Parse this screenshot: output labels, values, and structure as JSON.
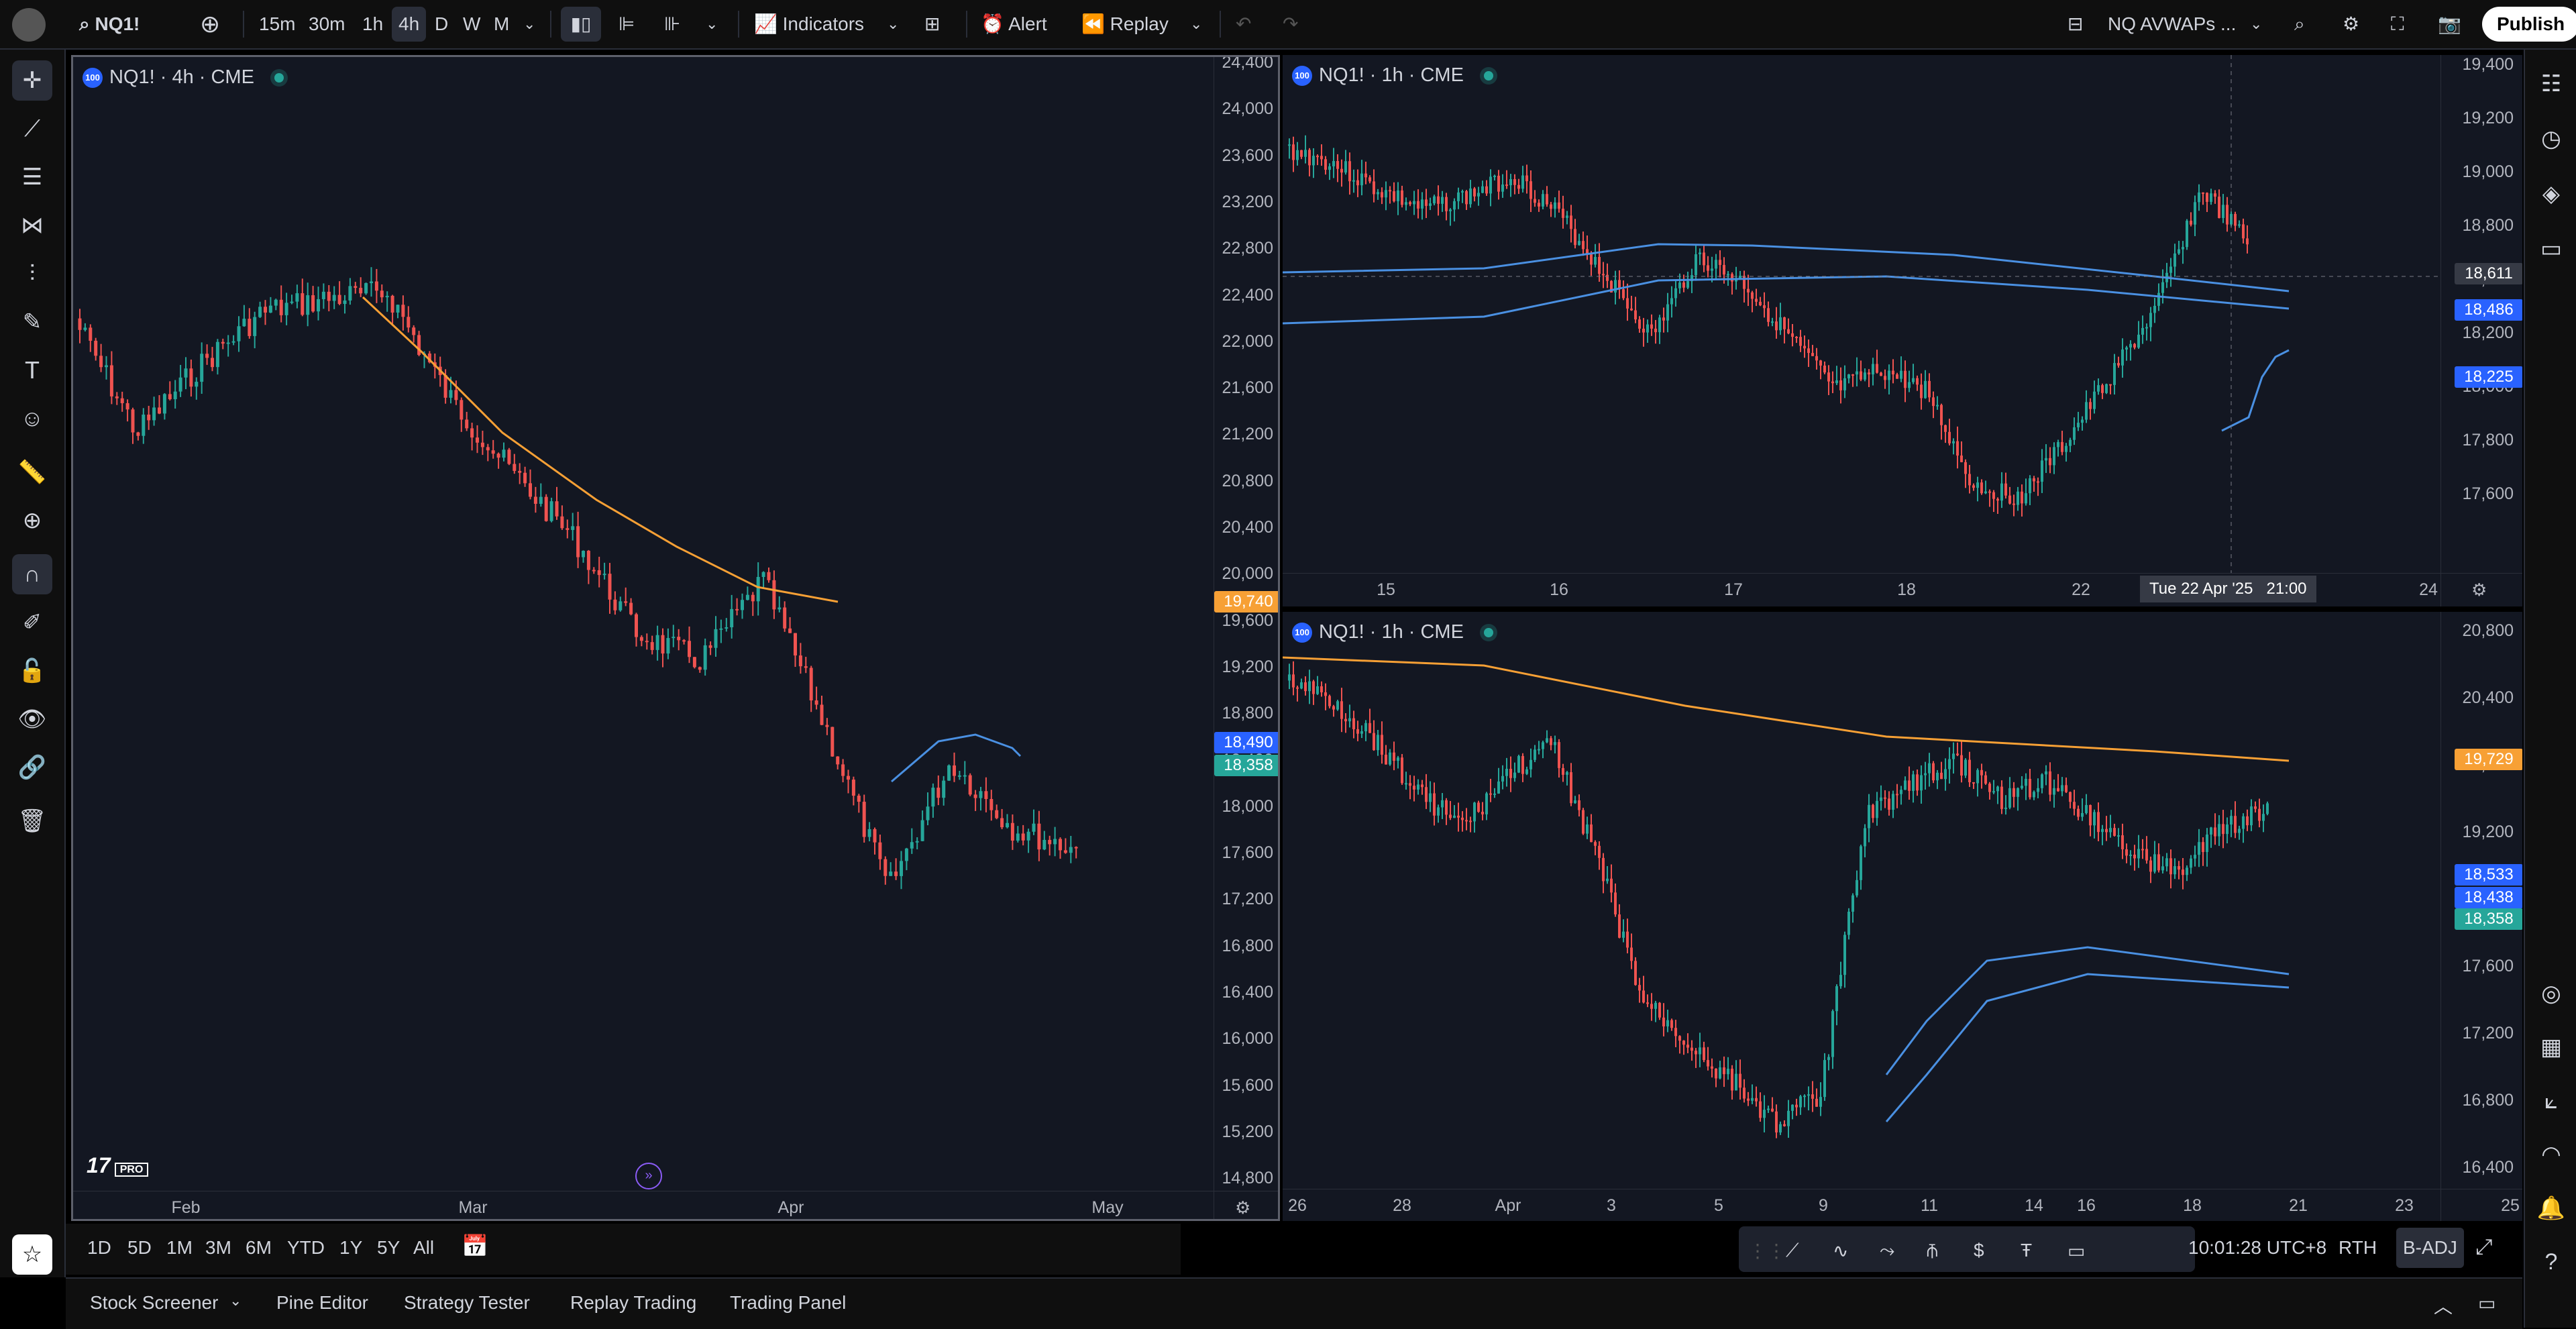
{
  "topbar": {
    "symbol": "NQ1!",
    "intervals": [
      "15m",
      "30m",
      "1h",
      "4h",
      "D",
      "W",
      "M"
    ],
    "active_interval": "4h",
    "indicators_label": "Indicators",
    "alert_label": "Alert",
    "replay_label": "Replay",
    "layout_name": "NQ AVWAPs ...",
    "publish_label": "Publish"
  },
  "left_pane": {
    "legend": "NQ1! · 4h · CME",
    "badge": "100",
    "y_ticks": [
      "24,400",
      "24,000",
      "23,600",
      "23,200",
      "22,800",
      "22,400",
      "22,000",
      "21,600",
      "21,200",
      "20,800",
      "20,400",
      "20,000",
      "19,600",
      "19,200",
      "18,800",
      "18,400",
      "18,000",
      "17,600",
      "17,200",
      "16,800",
      "16,400",
      "16,000",
      "15,600",
      "15,200",
      "14,800"
    ],
    "x_ticks": [
      "Feb",
      "Mar",
      "Apr",
      "May"
    ],
    "price_tags": [
      {
        "label": "19,740",
        "color": "#f7a035"
      },
      {
        "label": "18,490",
        "color": "#2962ff"
      },
      {
        "label": "18,358",
        "color": "#26a69a"
      }
    ],
    "watermark": "PRO"
  },
  "top_right_pane": {
    "legend": "NQ1! · 1h · CME",
    "badge": "100",
    "y_ticks": [
      "19,400",
      "19,200",
      "19,000",
      "18,800",
      "18,400",
      "18,200",
      "18,000",
      "17,800",
      "17,600"
    ],
    "x_ticks": [
      "15",
      "16",
      "17",
      "18",
      "22",
      "24"
    ],
    "crosshair_time": "Tue 22 Apr '25   21:00",
    "price_tags": [
      {
        "label": "18,611",
        "color": "#363a45"
      },
      {
        "label": "18,486",
        "color": "#2962ff"
      },
      {
        "label": "18,225",
        "color": "#2962ff"
      }
    ]
  },
  "bottom_right_pane": {
    "legend": "NQ1! · 1h · CME",
    "badge": "100",
    "y_ticks": [
      "20,800",
      "20,400",
      "20,000",
      "19,200",
      "18,000",
      "17,600",
      "17,200",
      "16,800",
      "16,400"
    ],
    "x_ticks": [
      "26",
      "28",
      "Apr",
      "3",
      "5",
      "9",
      "11",
      "14",
      "16",
      "18",
      "21",
      "23",
      "25"
    ],
    "price_tags": [
      {
        "label": "19,729",
        "color": "#f7a035"
      },
      {
        "label": "18,533",
        "color": "#2962ff"
      },
      {
        "label": "18,438",
        "color": "#2962ff"
      },
      {
        "label": "18,358",
        "color": "#26a69a"
      }
    ]
  },
  "range_bar": {
    "ranges": [
      "1D",
      "5D",
      "1M",
      "3M",
      "6M",
      "YTD",
      "1Y",
      "5Y",
      "All"
    ],
    "clock": "10:01:28 UTC+8",
    "session": "RTH",
    "adjust": "B-ADJ"
  },
  "bottom_bar": {
    "tabs": [
      "Stock Screener",
      "Pine Editor",
      "Strategy Tester",
      "Replay Trading",
      "Trading Panel"
    ]
  },
  "colors": {
    "up": "#26a69a",
    "down": "#ef5350",
    "vwap": "#f7a035",
    "avwap": "#4a90e2",
    "bg": "#131722"
  }
}
